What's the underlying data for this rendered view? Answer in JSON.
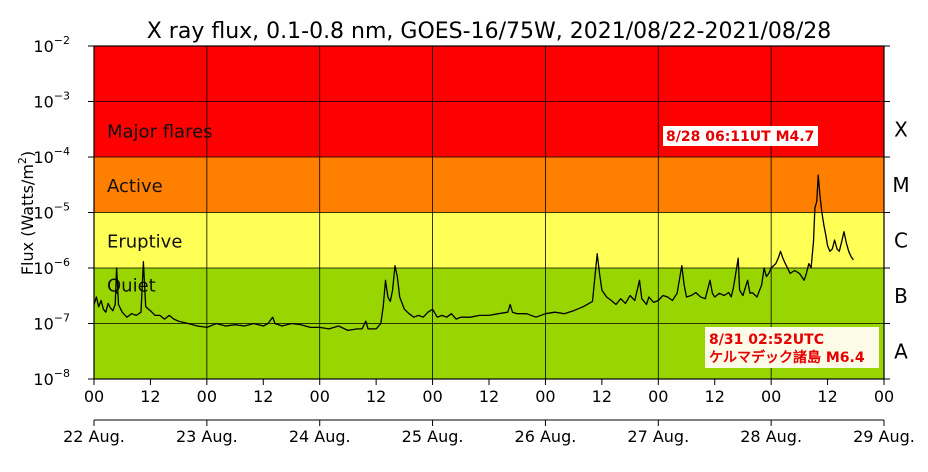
{
  "chart_data": {
    "type": "line",
    "title": "X ray flux, 0.1-0.8 nm, GOES-16/75W, 2021/08/22-2021/08/28",
    "ylabel_text": "Flux (Watts/m",
    "ylabel_sup": "2",
    "ylabel_close": ")",
    "y_scale": "log",
    "ylim": [
      1e-08,
      0.01
    ],
    "y_ticks": [
      {
        "base": "10",
        "exp": "−8"
      },
      {
        "base": "10",
        "exp": "−7"
      },
      {
        "base": "10",
        "exp": "−6"
      },
      {
        "base": "10",
        "exp": "−5"
      },
      {
        "base": "10",
        "exp": "−4"
      },
      {
        "base": "10",
        "exp": "−3"
      },
      {
        "base": "10",
        "exp": "−2"
      }
    ],
    "xlim_hours": [
      0,
      168
    ],
    "x_hour_ticks": [
      "00",
      "12",
      "00",
      "12",
      "00",
      "12",
      "00",
      "12",
      "00",
      "12",
      "00",
      "12",
      "00",
      "12",
      "00"
    ],
    "x_day_labels": [
      "22 Aug.",
      "23 Aug.",
      "24 Aug.",
      "25 Aug.",
      "26 Aug.",
      "27 Aug.",
      "28 Aug.",
      "29 Aug."
    ],
    "bands": [
      {
        "name": "Major flares",
        "from": 0.0001,
        "to": 0.01,
        "color": "#ff0000"
      },
      {
        "name": "Active",
        "from": 1e-05,
        "to": 0.0001,
        "color": "#ff7f00"
      },
      {
        "name": "Eruptive",
        "from": 1e-06,
        "to": 1e-05,
        "color": "#ffff55"
      },
      {
        "name": "Quiet",
        "from": 1e-08,
        "to": 1e-06,
        "color": "#99d500"
      }
    ],
    "class_letters": [
      "X",
      "M",
      "C",
      "B",
      "A"
    ],
    "annotations": [
      {
        "text": "8/28 06:11UT M4.7"
      },
      {
        "text": "8/31 02:52UTC"
      },
      {
        "text": "ケルマデック諸島 M6.4"
      }
    ],
    "grid": true,
    "series": [
      {
        "color": "#000000",
        "points": [
          [
            0,
            2.2e-07
          ],
          [
            0.5,
            3e-07
          ],
          [
            1,
            2e-07
          ],
          [
            1.5,
            2.6e-07
          ],
          [
            2,
            1.8e-07
          ],
          [
            2.5,
            1.6e-07
          ],
          [
            3,
            2.3e-07
          ],
          [
            3.5,
            1.9e-07
          ],
          [
            4,
            1.7e-07
          ],
          [
            4.5,
            2.2e-07
          ],
          [
            4.8,
            1e-06
          ],
          [
            5.2,
            2.2e-07
          ],
          [
            6,
            1.6e-07
          ],
          [
            7,
            1.3e-07
          ],
          [
            8,
            1.5e-07
          ],
          [
            9,
            1.4e-07
          ],
          [
            10,
            1.6e-07
          ],
          [
            10.5,
            1.3e-06
          ],
          [
            11,
            2e-07
          ],
          [
            12,
            1.7e-07
          ],
          [
            13,
            1.4e-07
          ],
          [
            14,
            1.4e-07
          ],
          [
            15,
            1.2e-07
          ],
          [
            16,
            1.4e-07
          ],
          [
            17,
            1.2e-07
          ],
          [
            18,
            1.1e-07
          ],
          [
            20,
            1e-07
          ],
          [
            22,
            9e-08
          ],
          [
            24,
            8.5e-08
          ],
          [
            26,
            1e-07
          ],
          [
            28,
            9e-08
          ],
          [
            30,
            9.5e-08
          ],
          [
            32,
            9e-08
          ],
          [
            34,
            1e-07
          ],
          [
            36,
            9e-08
          ],
          [
            37,
            1e-07
          ],
          [
            38,
            1.3e-07
          ],
          [
            38.5,
            1e-07
          ],
          [
            40,
            9e-08
          ],
          [
            42,
            1e-07
          ],
          [
            44,
            9.5e-08
          ],
          [
            46,
            8.5e-08
          ],
          [
            48,
            8.5e-08
          ],
          [
            50,
            8e-08
          ],
          [
            52,
            9e-08
          ],
          [
            54,
            7.5e-08
          ],
          [
            56,
            8e-08
          ],
          [
            57,
            8e-08
          ],
          [
            57.8,
            1.1e-07
          ],
          [
            58.3,
            8e-08
          ],
          [
            60,
            8e-08
          ],
          [
            61,
            1e-07
          ],
          [
            61.5,
            2e-07
          ],
          [
            62,
            6e-07
          ],
          [
            62.5,
            3e-07
          ],
          [
            63,
            2.5e-07
          ],
          [
            63.5,
            4e-07
          ],
          [
            64,
            1.1e-06
          ],
          [
            64.5,
            7e-07
          ],
          [
            65,
            3e-07
          ],
          [
            66,
            1.8e-07
          ],
          [
            67,
            1.5e-07
          ],
          [
            68,
            1.3e-07
          ],
          [
            69,
            1.4e-07
          ],
          [
            70,
            1.3e-07
          ],
          [
            71,
            1.6e-07
          ],
          [
            72,
            1.8e-07
          ],
          [
            73,
            1.3e-07
          ],
          [
            74,
            1.4e-07
          ],
          [
            75,
            1.3e-07
          ],
          [
            76,
            1.5e-07
          ],
          [
            77,
            1.2e-07
          ],
          [
            78,
            1.3e-07
          ],
          [
            80,
            1.3e-07
          ],
          [
            82,
            1.4e-07
          ],
          [
            84,
            1.4e-07
          ],
          [
            86,
            1.5e-07
          ],
          [
            88,
            1.6e-07
          ],
          [
            88.5,
            2.2e-07
          ],
          [
            89,
            1.6e-07
          ],
          [
            90,
            1.5e-07
          ],
          [
            92,
            1.5e-07
          ],
          [
            94,
            1.3e-07
          ],
          [
            96,
            1.5e-07
          ],
          [
            98,
            1.6e-07
          ],
          [
            100,
            1.5e-07
          ],
          [
            102,
            1.7e-07
          ],
          [
            104,
            2e-07
          ],
          [
            106,
            2.5e-07
          ],
          [
            107,
            1.8e-06
          ],
          [
            107.5,
            8e-07
          ],
          [
            108,
            4e-07
          ],
          [
            109,
            3e-07
          ],
          [
            110,
            2.6e-07
          ],
          [
            111,
            2.2e-07
          ],
          [
            112,
            2.8e-07
          ],
          [
            113,
            2.3e-07
          ],
          [
            114,
            3.2e-07
          ],
          [
            115,
            2.6e-07
          ],
          [
            116,
            6e-07
          ],
          [
            116.5,
            2.8e-07
          ],
          [
            117.5,
            2.2e-07
          ],
          [
            118,
            3e-07
          ],
          [
            119,
            2.4e-07
          ],
          [
            120,
            2.6e-07
          ],
          [
            121,
            3.2e-07
          ],
          [
            122,
            3e-07
          ],
          [
            123,
            2.6e-07
          ],
          [
            124,
            3.5e-07
          ],
          [
            125,
            1.1e-06
          ],
          [
            125.5,
            5e-07
          ],
          [
            126,
            3e-07
          ],
          [
            127,
            3.2e-07
          ],
          [
            128,
            3.6e-07
          ],
          [
            129,
            3e-07
          ],
          [
            130,
            2.8e-07
          ],
          [
            131,
            6e-07
          ],
          [
            131.5,
            3.5e-07
          ],
          [
            132,
            3e-07
          ],
          [
            133,
            3.5e-07
          ],
          [
            134,
            3.2e-07
          ],
          [
            135,
            3.6e-07
          ],
          [
            135.5,
            3e-07
          ],
          [
            136,
            4.5e-07
          ],
          [
            137,
            1.5e-06
          ],
          [
            137.3,
            4e-07
          ],
          [
            138,
            3.2e-07
          ],
          [
            139,
            6e-07
          ],
          [
            139.5,
            3.5e-07
          ],
          [
            140,
            3.6e-07
          ],
          [
            141,
            3e-07
          ],
          [
            142,
            5e-07
          ],
          [
            142.5,
            1e-06
          ],
          [
            143,
            7e-07
          ],
          [
            143.5,
            8e-07
          ],
          [
            144,
            1e-06
          ],
          [
            145,
            1.2e-06
          ],
          [
            145.5,
            1.5e-06
          ],
          [
            146,
            2e-06
          ],
          [
            146.5,
            1.5e-06
          ],
          [
            147,
            1.2e-06
          ],
          [
            147.5,
            1e-06
          ],
          [
            148,
            8e-07
          ],
          [
            149,
            9e-07
          ],
          [
            150,
            8e-07
          ],
          [
            151,
            6e-07
          ],
          [
            151.5,
            8e-07
          ],
          [
            152,
            1.2e-06
          ],
          [
            152.5,
            1e-06
          ],
          [
            153,
            3e-06
          ],
          [
            153.3,
            1.2e-05
          ],
          [
            153.7,
            1.6e-05
          ],
          [
            154,
            4.7e-05
          ],
          [
            154.4,
            2e-05
          ],
          [
            154.8,
            1e-05
          ],
          [
            155.2,
            6e-06
          ],
          [
            155.6,
            4e-06
          ],
          [
            156,
            2.5e-06
          ],
          [
            156.5,
            2e-06
          ],
          [
            157,
            2.2e-06
          ],
          [
            157.5,
            3.2e-06
          ],
          [
            158,
            2.2e-06
          ],
          [
            158.5,
            2e-06
          ],
          [
            159,
            3e-06
          ],
          [
            159.5,
            4.5e-06
          ],
          [
            160,
            2.8e-06
          ],
          [
            160.5,
            2e-06
          ],
          [
            161,
            1.6e-06
          ],
          [
            161.5,
            1.4e-06
          ]
        ]
      }
    ]
  }
}
